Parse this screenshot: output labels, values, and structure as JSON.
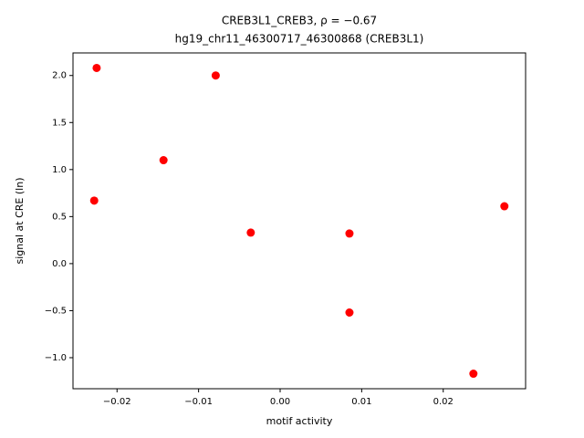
{
  "chart_data": {
    "type": "scatter",
    "title": "CREB3L1_CREB3, ρ = −0.67",
    "subtitle": "hg19_chr11_46300717_46300868 (CREB3L1)",
    "x_label": "motif activity",
    "y_label": "signal at CRE (ln)",
    "color": "#ff0000",
    "x": [
      -0.0225,
      -0.0079,
      -0.0143,
      -0.0228,
      -0.0036,
      0.0085,
      0.0085,
      0.0275,
      0.0237
    ],
    "values": [
      2.08,
      2.0,
      1.1,
      0.67,
      0.33,
      0.32,
      -0.52,
      0.61,
      -1.17
    ],
    "xlim": [
      -0.0254,
      0.0301
    ],
    "ylim": [
      -1.33,
      2.24
    ],
    "xticks": [
      {
        "value": -0.02,
        "label": "−0.02"
      },
      {
        "value": -0.01,
        "label": "−0.01"
      },
      {
        "value": 0,
        "label": "0.00"
      },
      {
        "value": 0.01,
        "label": "0.01"
      },
      {
        "value": 0.02,
        "label": "0.02"
      }
    ],
    "yticks": [
      {
        "value": -1,
        "label": "−1.0"
      },
      {
        "value": -0.5,
        "label": "−0.5"
      },
      {
        "value": 0,
        "label": "0.0"
      },
      {
        "value": 0.5,
        "label": "0.5"
      },
      {
        "value": 1,
        "label": "1.0"
      },
      {
        "value": 1.5,
        "label": "1.5"
      },
      {
        "value": 2,
        "label": "2.0"
      }
    ]
  }
}
